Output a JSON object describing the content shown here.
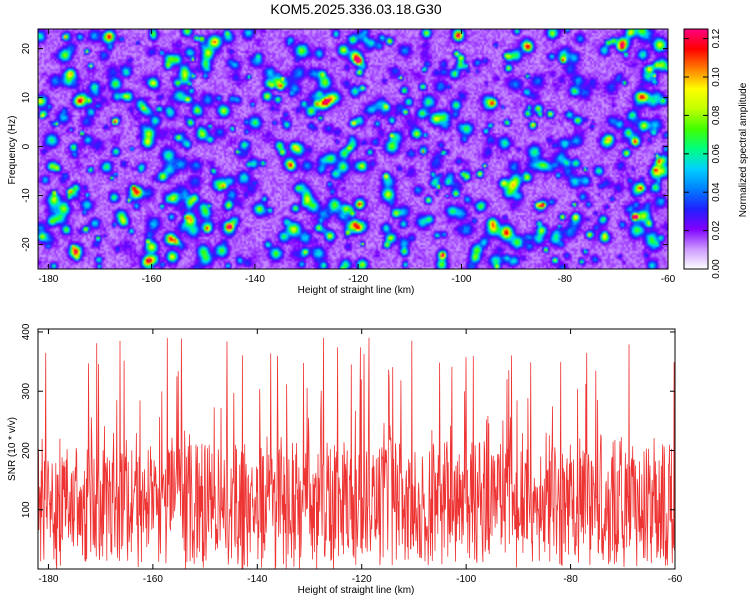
{
  "title": "KOM5.2025.336.03.18.G30",
  "chart_data": [
    {
      "type": "heatmap",
      "xlabel": "Height of straight line (km)",
      "ylabel": "Frequency (Hz)",
      "xlim": [
        -182,
        -60
      ],
      "ylim": [
        -25,
        24
      ],
      "xticks": [
        -180,
        -160,
        -140,
        -120,
        -100,
        -80,
        -60
      ],
      "yticks": [
        20,
        10,
        0,
        -10,
        -20
      ],
      "colorbar": {
        "label": "Normalized spectral amplitude",
        "range": [
          0.0,
          0.125
        ],
        "ticks": [
          "0.00",
          "0.02",
          "0.04",
          "0.06",
          "0.08",
          "0.10",
          "0.12"
        ],
        "colors": [
          "#ffffff",
          "#cc99ff",
          "#8000ff",
          "#2020ff",
          "#0080ff",
          "#00d0ff",
          "#00ff80",
          "#40ff00",
          "#c0ff00",
          "#ffff00",
          "#ff8000",
          "#ff0000",
          "#ff0080"
        ]
      }
    },
    {
      "type": "line",
      "xlabel": "Height of straight line (km)",
      "ylabel": "SNR (10 * v/v)",
      "xlim": [
        -182,
        -60
      ],
      "ylim": [
        0,
        405
      ],
      "xticks": [
        -180,
        -160,
        -140,
        -120,
        -100,
        -80,
        -60
      ],
      "yticks": [
        100,
        200,
        300,
        400
      ],
      "color": "#ee3333",
      "series": [
        {
          "name": "SNR",
          "typical_range": [
            20,
            210
          ],
          "peak_max": 400
        }
      ]
    }
  ]
}
